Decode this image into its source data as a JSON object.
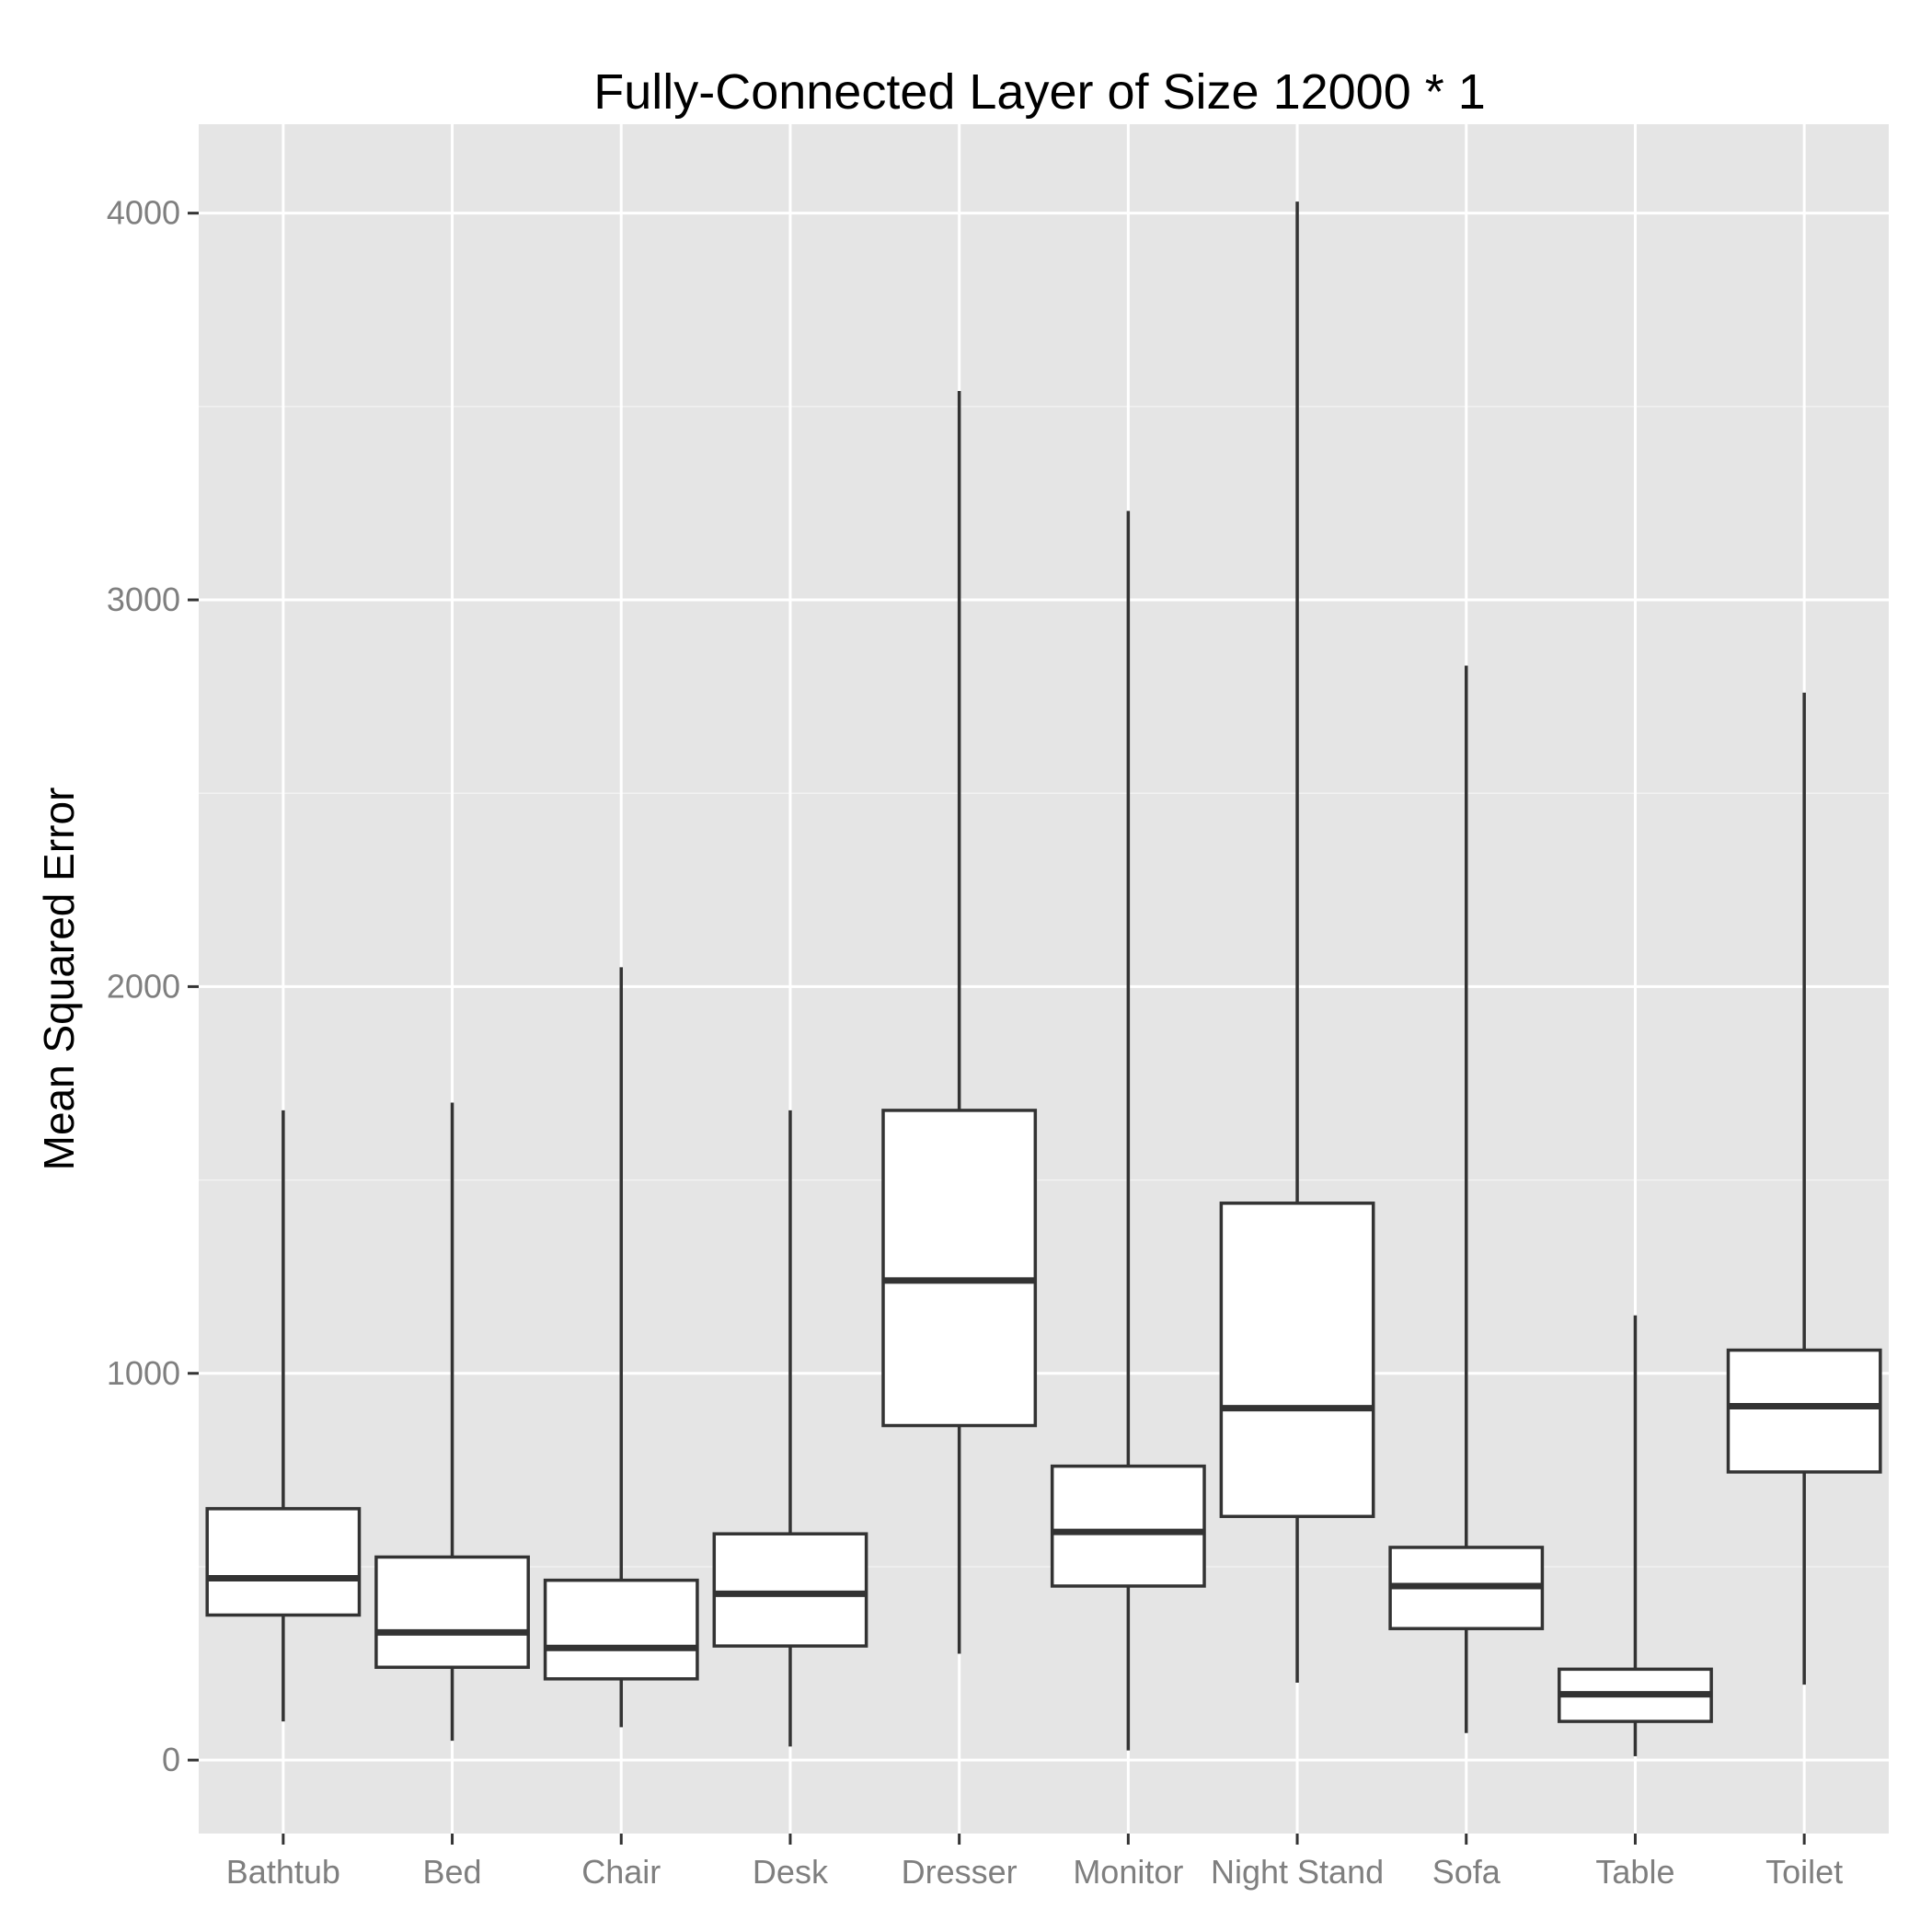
{
  "chart_data": {
    "type": "boxplot",
    "title": "Fully-Connected Layer of Size 12000 * 1",
    "ylabel": "Mean Squared Error",
    "xlabel": "",
    "ylim": [
      -190,
      4230
    ],
    "yticks": [
      0,
      1000,
      2000,
      3000,
      4000
    ],
    "grid": true,
    "categories": [
      "Bathtub",
      "Bed",
      "Chair",
      "Desk",
      "Dresser",
      "Monitor",
      "Night Stand",
      "Sofa",
      "Table",
      "Toilet"
    ],
    "boxes": [
      {
        "category": "Bathtub",
        "min": 100,
        "q1": 375,
        "median": 470,
        "q3": 650,
        "max": 1680
      },
      {
        "category": "Bed",
        "min": 50,
        "q1": 240,
        "median": 330,
        "q3": 525,
        "max": 1700
      },
      {
        "category": "Chair",
        "min": 85,
        "q1": 210,
        "median": 290,
        "q3": 465,
        "max": 2050
      },
      {
        "category": "Desk",
        "min": 35,
        "q1": 295,
        "median": 430,
        "q3": 585,
        "max": 1680
      },
      {
        "category": "Dresser",
        "min": 275,
        "q1": 865,
        "median": 1240,
        "q3": 1680,
        "max": 3540
      },
      {
        "category": "Monitor",
        "min": 25,
        "q1": 450,
        "median": 590,
        "q3": 760,
        "max": 3230
      },
      {
        "category": "Night Stand",
        "min": 200,
        "q1": 630,
        "median": 910,
        "q3": 1440,
        "max": 4030
      },
      {
        "category": "Sofa",
        "min": 70,
        "q1": 340,
        "median": 450,
        "q3": 550,
        "max": 2830
      },
      {
        "category": "Table",
        "min": 10,
        "q1": 100,
        "median": 170,
        "q3": 235,
        "max": 1150
      },
      {
        "category": "Toilet",
        "min": 195,
        "q1": 745,
        "median": 915,
        "q3": 1060,
        "max": 2760
      }
    ]
  }
}
